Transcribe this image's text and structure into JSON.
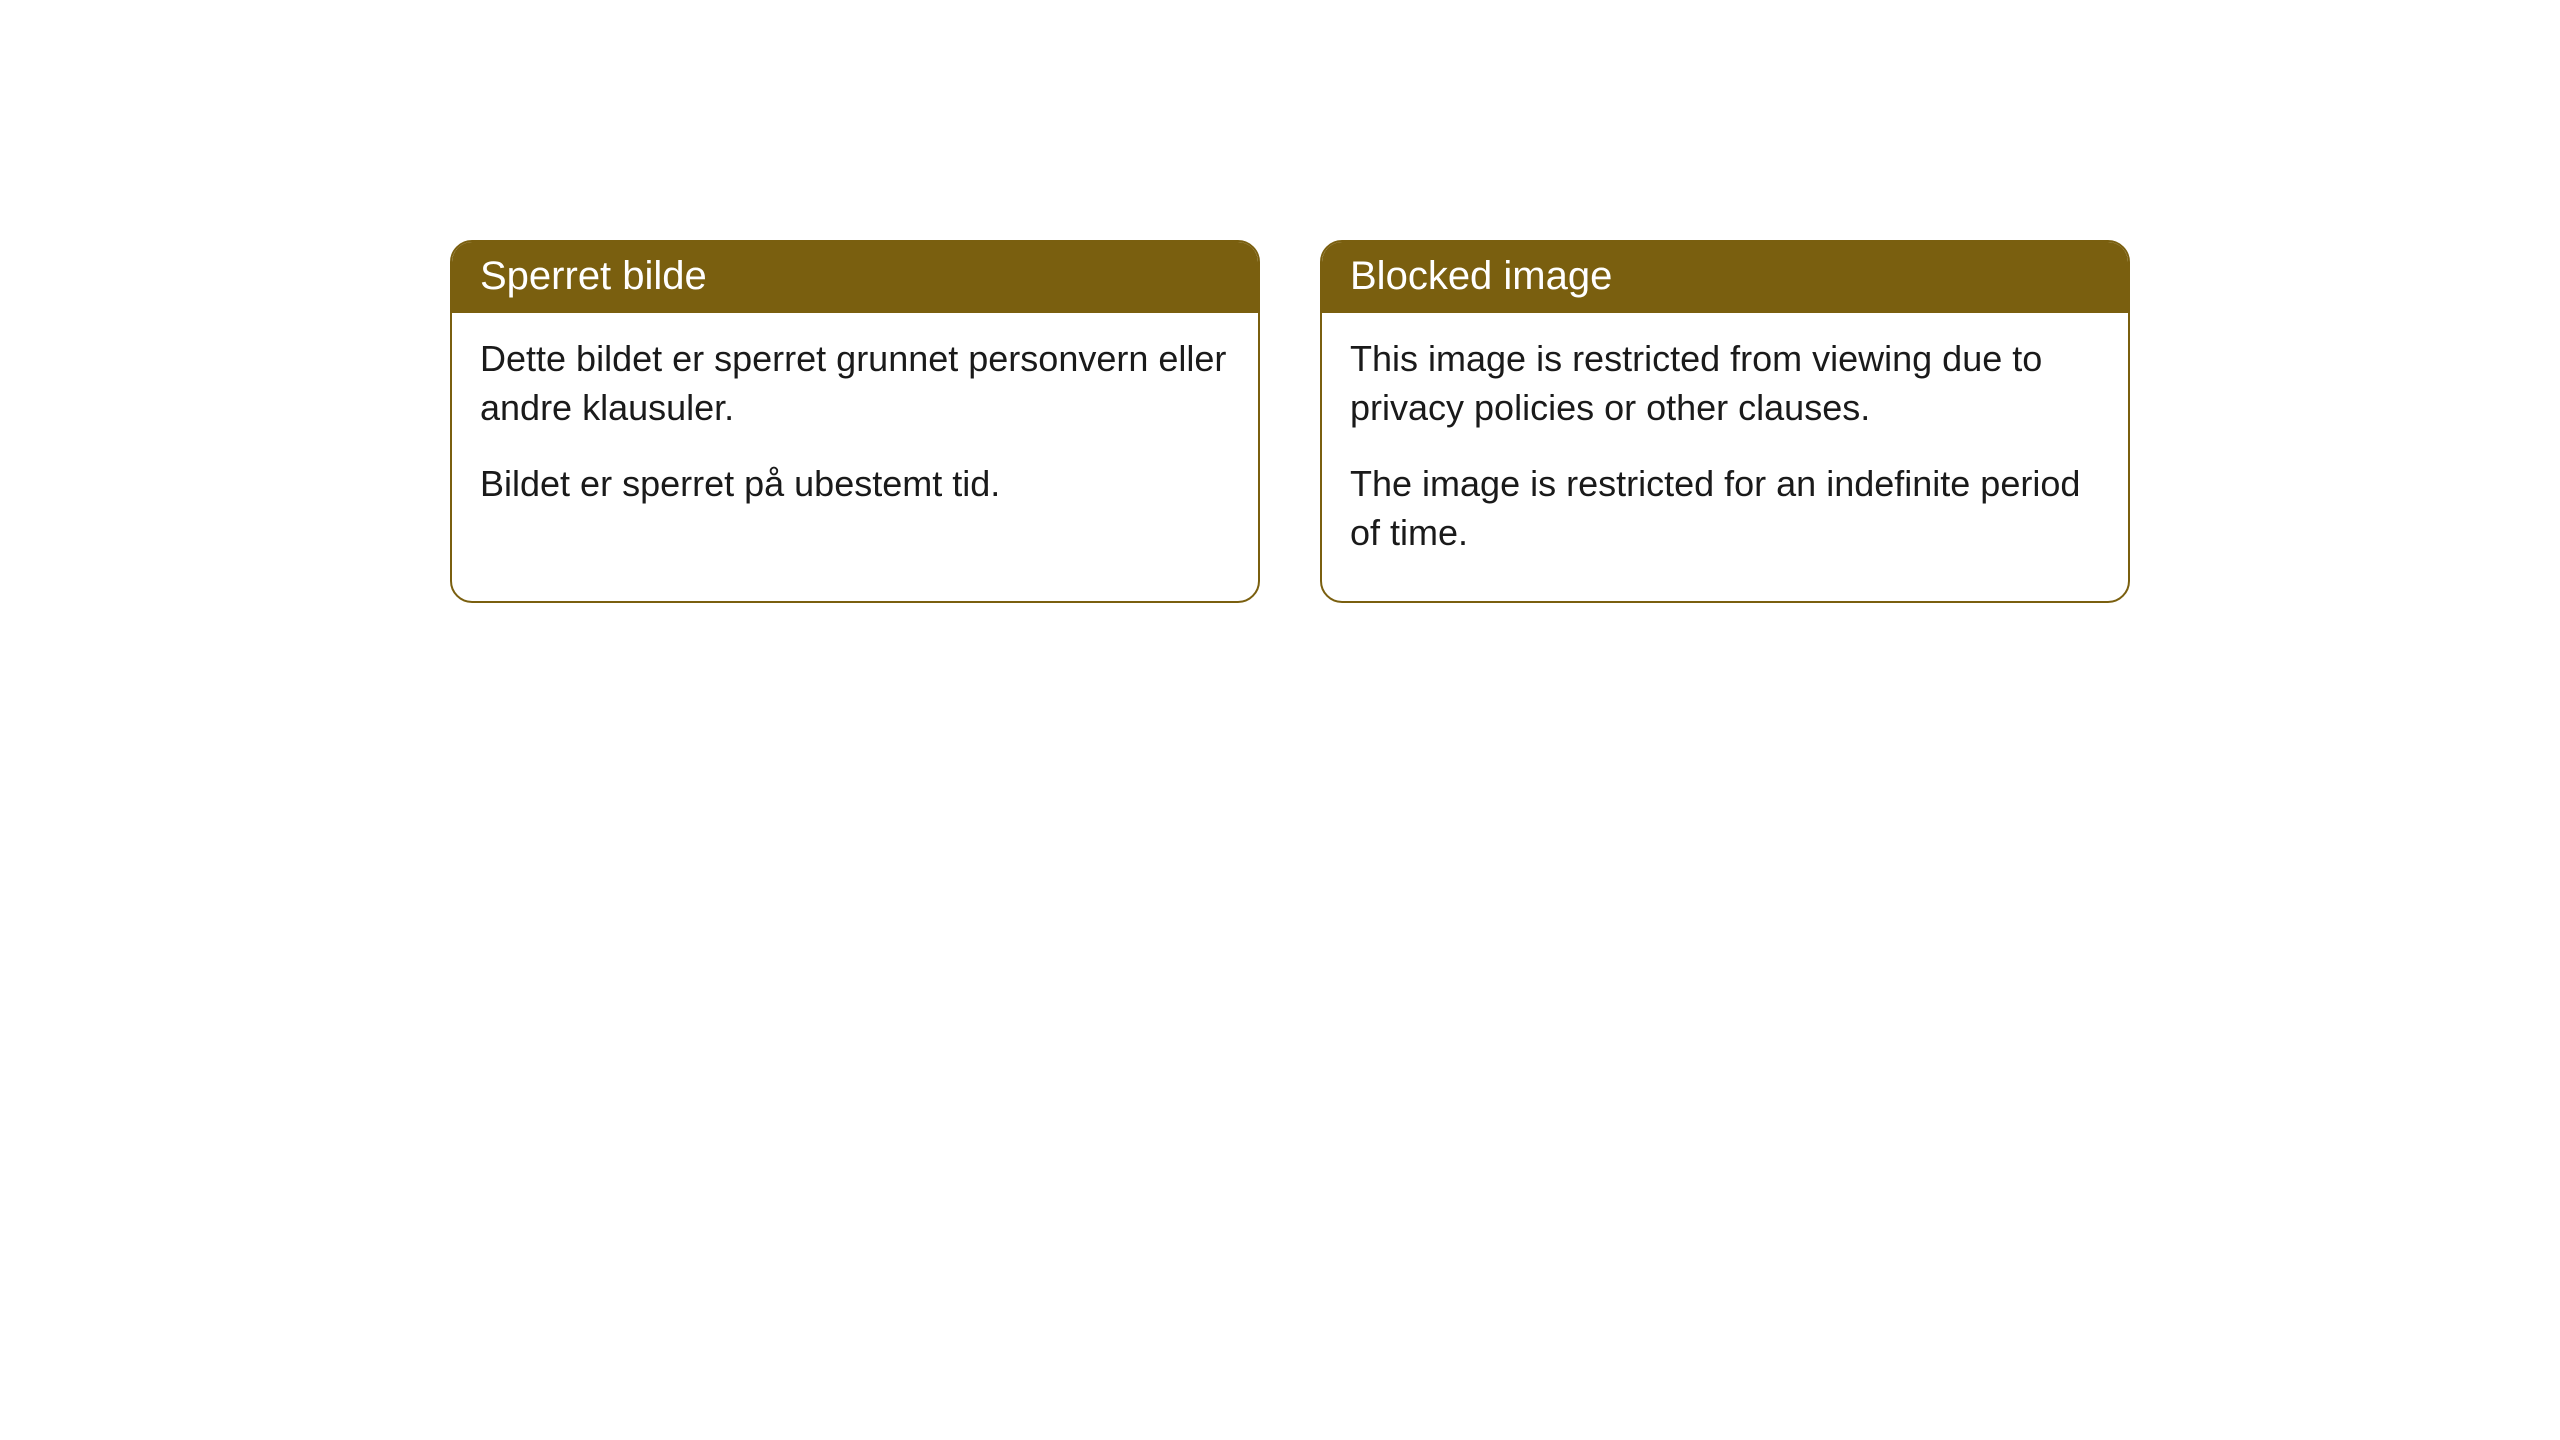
{
  "cards": [
    {
      "title": "Sperret bilde",
      "paragraph1": "Dette bildet er sperret grunnet personvern eller andre klausuler.",
      "paragraph2": "Bildet er sperret på ubestemt tid."
    },
    {
      "title": "Blocked image",
      "paragraph1": "This image is restricted from viewing due to privacy policies or other clauses.",
      "paragraph2": "The image is restricted for an indefinite period of time."
    }
  ],
  "styling": {
    "header_background": "#7a5f0f",
    "header_text_color": "#ffffff",
    "border_color": "#7a5f0f",
    "body_background": "#ffffff",
    "body_text_color": "#1a1a1a",
    "border_radius": 22,
    "title_fontsize": 40,
    "body_fontsize": 36
  }
}
